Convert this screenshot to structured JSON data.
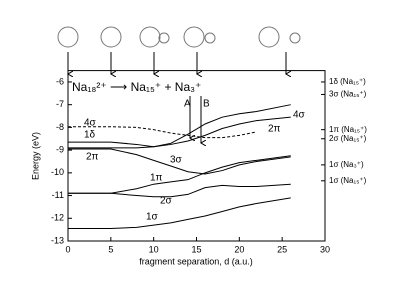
{
  "chart_data": {
    "type": "line",
    "equation": "Na₁₈²⁺ ⟶ Na₁₅⁺ + Na₃⁺",
    "xlabel": "fragment separation, d (a.u.)",
    "ylabel": "Energy (eV)",
    "xlim": [
      0,
      30
    ],
    "xticks": [
      0,
      5,
      10,
      15,
      20,
      25,
      30
    ],
    "ylim": [
      -13,
      -5.5
    ],
    "yticks": [
      -13,
      -12,
      -11,
      -10,
      -9,
      -8,
      -7,
      -6
    ],
    "y2lim": [
      -13,
      -5.5
    ],
    "y2ticks": [
      {
        "value": -6.0,
        "label": "1δ (Na₁₅⁺)"
      },
      {
        "value": -6.55,
        "label": "3σ (Na₁₅⁺)"
      },
      {
        "value": -8.1,
        "label": "1π (Na₁₅⁺)"
      },
      {
        "value": -8.5,
        "label": "2σ (Na₁₅⁺)"
      },
      {
        "value": -9.65,
        "label": "1σ (Na₃⁺)"
      },
      {
        "value": -10.35,
        "label": "1σ (Na₁₅⁺)"
      }
    ],
    "x": [
      0,
      5,
      8,
      10,
      12,
      14,
      16,
      18,
      20,
      22,
      26
    ],
    "series": [
      {
        "color": "#000000",
        "style": "solid",
        "values": [
          -8.65,
          -8.65,
          -8.75,
          -8.85,
          -8.7,
          -8.3,
          -7.85,
          -7.55,
          -7.4,
          -7.3,
          -7.0
        ]
      },
      {
        "color": "#000000",
        "style": "solid",
        "values": [
          -8.9,
          -8.9,
          -8.9,
          -8.85,
          -8.75,
          -8.6,
          -8.35,
          -8.05,
          -7.85,
          -7.7,
          -7.55
        ]
      },
      {
        "color": "#000000",
        "style": "dashed",
        "values": [
          -7.97,
          -7.97,
          -8.0,
          -8.1,
          -8.25,
          -8.35,
          -8.45,
          -8.45,
          -8.35,
          -8.2,
          null
        ]
      },
      {
        "color": "#000000",
        "style": "solid",
        "values": [
          -8.95,
          -8.95,
          -9.2,
          -9.45,
          -9.7,
          -9.95,
          -10.05,
          -9.9,
          -9.65,
          -9.5,
          -9.3
        ]
      },
      {
        "color": "#000000",
        "style": "solid",
        "values": [
          -10.9,
          -10.9,
          -10.7,
          -10.5,
          -10.4,
          -10.3,
          -10.0,
          -9.75,
          -9.55,
          -9.45,
          -9.25
        ]
      },
      {
        "color": "#000000",
        "style": "solid",
        "values": [
          -10.9,
          -10.9,
          -11.0,
          -11.05,
          -11.05,
          -10.95,
          -10.65,
          -10.55,
          -10.6,
          -10.6,
          -10.5
        ]
      },
      {
        "color": "#000000",
        "style": "solid",
        "values": [
          -12.45,
          -12.45,
          -12.4,
          -12.3,
          -12.2,
          -12.05,
          -11.9,
          -11.7,
          -11.5,
          -11.35,
          -11.1
        ]
      }
    ],
    "annotations": [
      "4σ",
      "1δ",
      "2π",
      "3σ",
      "1π",
      "2σ",
      "1σ",
      "2π",
      "4σ",
      "A",
      "B"
    ]
  }
}
